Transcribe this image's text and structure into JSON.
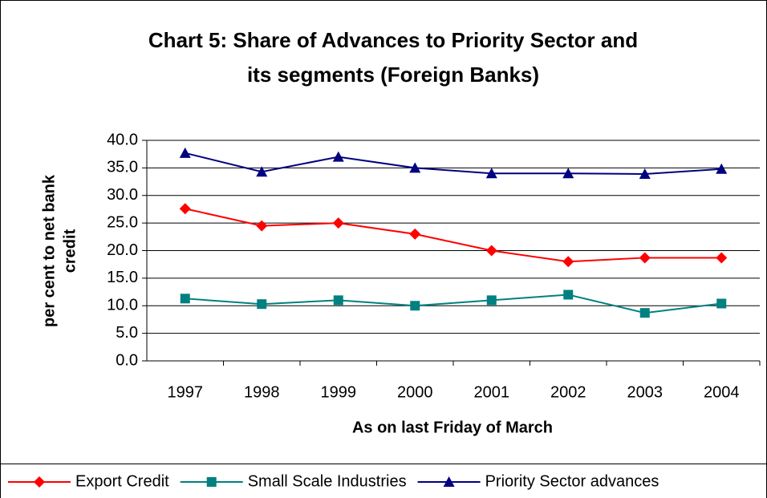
{
  "chart_data": {
    "type": "line",
    "title": [
      "Chart 5: Share of Advances to Priority Sector and",
      "its segments (Foreign Banks)"
    ],
    "xlabel": "As on last Friday of March",
    "ylabel": [
      "per cent  to net bank",
      "credit"
    ],
    "categories": [
      "1997",
      "1998",
      "1999",
      "2000",
      "2001",
      "2002",
      "2003",
      "2004"
    ],
    "series": [
      {
        "name": "Export Credit",
        "color": "#ff0000",
        "marker": "diamond",
        "values": [
          27.6,
          24.5,
          25.0,
          23.0,
          20.0,
          18.0,
          18.7,
          18.7
        ]
      },
      {
        "name": "Small Scale Industries",
        "color": "#008080",
        "marker": "square",
        "values": [
          11.3,
          10.3,
          11.0,
          10.0,
          11.0,
          12.0,
          8.7,
          10.4
        ]
      },
      {
        "name": "Priority Sector advances",
        "color": "#000080",
        "marker": "triangle",
        "values": [
          37.7,
          34.3,
          37.0,
          35.0,
          34.0,
          34.0,
          33.9,
          34.8
        ]
      }
    ],
    "ylim": [
      0,
      40
    ],
    "yticks": [
      {
        "value": 0,
        "label": "0.0"
      },
      {
        "value": 5,
        "label": "5.0"
      },
      {
        "value": 10,
        "label": "10.0"
      },
      {
        "value": 15,
        "label": "15.0"
      },
      {
        "value": 20,
        "label": "20.0"
      },
      {
        "value": 25,
        "label": "25.0"
      },
      {
        "value": 30,
        "label": "30.0"
      },
      {
        "value": 35,
        "label": "35.0"
      },
      {
        "value": 40,
        "label": "40.0"
      }
    ],
    "grid": true,
    "legend": "bottom"
  }
}
